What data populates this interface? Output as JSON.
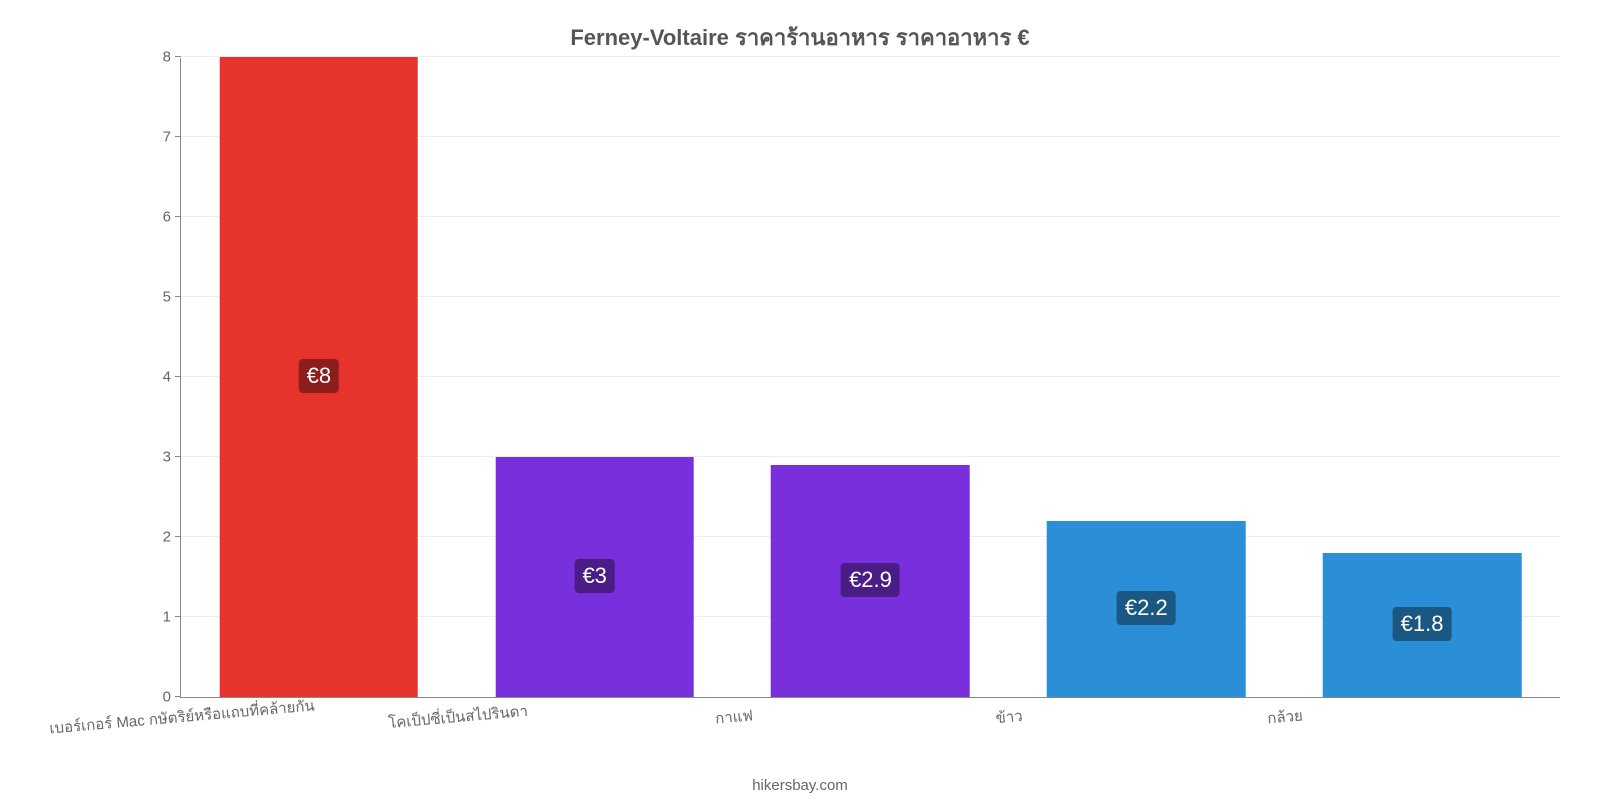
{
  "chart": {
    "type": "bar",
    "title": "Ferney-Voltaire ราคาร้านอาหาร ราคาอาหาร €",
    "title_fontsize": 22,
    "title_color": "#555555",
    "background_color": "#ffffff",
    "grid_color": "#eeeeee",
    "axis_color": "#888888",
    "tick_color": "#666666",
    "tick_fontsize": 15,
    "xtick_fontsize": 15,
    "ylim": [
      0,
      8
    ],
    "ytick_step": 1,
    "yticks": [
      0,
      1,
      2,
      3,
      4,
      5,
      6,
      7,
      8
    ],
    "bar_width_pct": 72,
    "xtick_rotation_deg": -5,
    "bars": [
      {
        "category": "เบอร์เกอร์ Mac กษัตริย์หรือแถบที่คล้ายกัน",
        "value": 8.0,
        "display": "€8",
        "color": "#e6332c",
        "label_bg": "#8b1e1a"
      },
      {
        "category": "โคเป็ปซี่เป็นสไปรินดา",
        "value": 3.0,
        "display": "€3",
        "color": "#7a2fdc",
        "label_bg": "#4a1c86"
      },
      {
        "category": "กาแฟ",
        "value": 2.9,
        "display": "€2.9",
        "color": "#7a2fdc",
        "label_bg": "#4a1c86"
      },
      {
        "category": "ข้าว",
        "value": 2.2,
        "display": "€2.2",
        "color": "#2a8fd7",
        "label_bg": "#1a5783"
      },
      {
        "category": "กล้วย",
        "value": 1.8,
        "display": "€1.8",
        "color": "#2a8fd7",
        "label_bg": "#1a5783"
      }
    ],
    "label_fontsize": 22,
    "label_text_color": "#ffffff",
    "credit": "hikersbay.com",
    "credit_color": "#666666",
    "credit_fontsize": 15
  }
}
